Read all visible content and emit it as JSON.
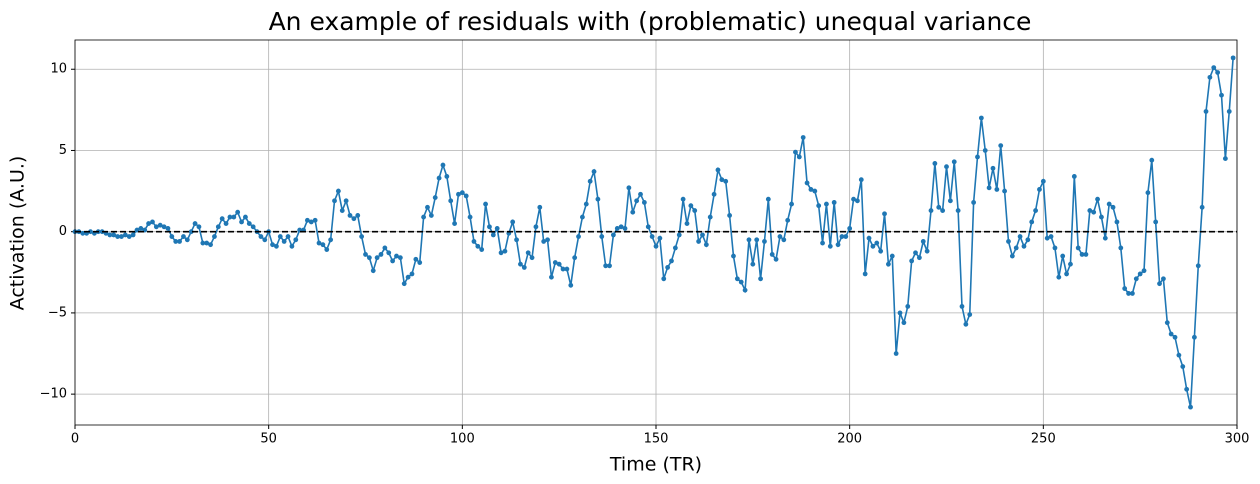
{
  "chart_data": {
    "type": "line",
    "title": "An example of residuals with (problematic) unequal variance",
    "x_label": "Time (TR)",
    "y_label": "Activation (A.U.)",
    "x": [
      0,
      1,
      2,
      3,
      4,
      5,
      6,
      7,
      8,
      9,
      10,
      11,
      12,
      13,
      14,
      15,
      16,
      17,
      18,
      19,
      20,
      21,
      22,
      23,
      24,
      25,
      26,
      27,
      28,
      29,
      30,
      31,
      32,
      33,
      34,
      35,
      36,
      37,
      38,
      39,
      40,
      41,
      42,
      43,
      44,
      45,
      46,
      47,
      48,
      49,
      50,
      51,
      52,
      53,
      54,
      55,
      56,
      57,
      58,
      59,
      60,
      61,
      62,
      63,
      64,
      65,
      66,
      67,
      68,
      69,
      70,
      71,
      72,
      73,
      74,
      75,
      76,
      77,
      78,
      79,
      80,
      81,
      82,
      83,
      84,
      85,
      86,
      87,
      88,
      89,
      90,
      91,
      92,
      93,
      94,
      95,
      96,
      97,
      98,
      99,
      100,
      101,
      102,
      103,
      104,
      105,
      106,
      107,
      108,
      109,
      110,
      111,
      112,
      113,
      114,
      115,
      116,
      117,
      118,
      119,
      120,
      121,
      122,
      123,
      124,
      125,
      126,
      127,
      128,
      129,
      130,
      131,
      132,
      133,
      134,
      135,
      136,
      137,
      138,
      139,
      140,
      141,
      142,
      143,
      144,
      145,
      146,
      147,
      148,
      149,
      150,
      151,
      152,
      153,
      154,
      155,
      156,
      157,
      158,
      159,
      160,
      161,
      162,
      163,
      164,
      165,
      166,
      167,
      168,
      169,
      170,
      171,
      172,
      173,
      174,
      175,
      176,
      177,
      178,
      179,
      180,
      181,
      182,
      183,
      184,
      185,
      186,
      187,
      188,
      189,
      190,
      191,
      192,
      193,
      194,
      195,
      196,
      197,
      198,
      199,
      200,
      201,
      202,
      203,
      204,
      205,
      206,
      207,
      208,
      209,
      210,
      211,
      212,
      213,
      214,
      215,
      216,
      217,
      218,
      219,
      220,
      221,
      222,
      223,
      224,
      225,
      226,
      227,
      228,
      229,
      230,
      231,
      232,
      233,
      234,
      235,
      236,
      237,
      238,
      239,
      240,
      241,
      242,
      243,
      244,
      245,
      246,
      247,
      248,
      249,
      250,
      251,
      252,
      253,
      254,
      255,
      256,
      257,
      258,
      259,
      260,
      261,
      262,
      263,
      264,
      265,
      266,
      267,
      268,
      269,
      270,
      271,
      272,
      273,
      274,
      275,
      276,
      277,
      278,
      279,
      280,
      281,
      282,
      283,
      284,
      285,
      286,
      287,
      288,
      289,
      290,
      291,
      292,
      293,
      294,
      295,
      296,
      297,
      298,
      299
    ],
    "values": [
      0,
      0,
      -0.1,
      -0.1,
      0,
      -0.1,
      0,
      0,
      -0.1,
      -0.2,
      -0.2,
      -0.3,
      -0.3,
      -0.2,
      -0.3,
      -0.2,
      0.1,
      0.2,
      0.1,
      0.5,
      0.6,
      0.3,
      0.4,
      0.3,
      0.2,
      -0.3,
      -0.6,
      -0.6,
      -0.3,
      -0.5,
      0,
      0.5,
      0.3,
      -0.7,
      -0.7,
      -0.8,
      -0.3,
      0.3,
      0.8,
      0.5,
      0.9,
      0.9,
      1.2,
      0.6,
      0.9,
      0.5,
      0.3,
      0,
      -0.3,
      -0.5,
      0,
      -0.8,
      -0.9,
      -0.3,
      -0.6,
      -0.3,
      -0.9,
      -0.5,
      0.1,
      0.1,
      0.7,
      0.6,
      0.7,
      -0.7,
      -0.8,
      -1.1,
      -0.5,
      1.9,
      2.5,
      1.3,
      1.9,
      1.0,
      0.8,
      1.0,
      -0.3,
      -1.4,
      -1.6,
      -2.4,
      -1.6,
      -1.4,
      -1.0,
      -1.3,
      -1.8,
      -1.5,
      -1.6,
      -3.2,
      -2.8,
      -2.6,
      -1.7,
      -1.9,
      0.9,
      1.5,
      1.0,
      2.1,
      3.3,
      4.1,
      3.4,
      1.9,
      0.5,
      2.3,
      2.4,
      2.2,
      0.9,
      -0.6,
      -0.9,
      -1.1,
      1.7,
      0.3,
      -0.2,
      0.2,
      -1.3,
      -1.2,
      -0.1,
      0.6,
      -0.5,
      -2.0,
      -2.2,
      -1.3,
      -1.6,
      0.3,
      1.5,
      -0.6,
      -0.5,
      -2.8,
      -1.9,
      -2.0,
      -2.3,
      -2.3,
      -3.3,
      -1.6,
      -0.3,
      0.9,
      1.7,
      3.1,
      3.7,
      2.0,
      -0.3,
      -2.1,
      -2.1,
      -0.2,
      0.2,
      0.3,
      0.2,
      2.7,
      1.2,
      1.9,
      2.3,
      1.8,
      0.3,
      -0.3,
      -0.9,
      -0.4,
      -2.9,
      -2.2,
      -1.8,
      -1.0,
      -0.2,
      2.0,
      0.5,
      1.6,
      1.3,
      -0.6,
      -0.2,
      -0.8,
      0.9,
      2.3,
      3.8,
      3.2,
      3.1,
      1.0,
      -1.5,
      -2.9,
      -3.1,
      -3.6,
      -0.5,
      -2.0,
      -0.5,
      -2.9,
      -0.6,
      2.0,
      -1.4,
      -1.7,
      -0.3,
      -0.5,
      0.7,
      1.7,
      4.9,
      4.6,
      5.8,
      3.0,
      2.6,
      2.5,
      1.6,
      -0.7,
      1.7,
      -0.9,
      1.8,
      -0.8,
      -0.3,
      -0.3,
      0.2,
      2.0,
      1.9,
      3.2,
      -2.6,
      -0.4,
      -0.9,
      -0.7,
      -1.2,
      1.1,
      -2.0,
      -1.5,
      -7.5,
      -5.0,
      -5.6,
      -4.6,
      -1.8,
      -1.3,
      -1.6,
      -0.6,
      -1.2,
      1.3,
      4.2,
      1.5,
      1.3,
      4.0,
      1.9,
      4.3,
      1.3,
      -4.6,
      -5.7,
      -5.1,
      1.8,
      4.6,
      7.0,
      5.0,
      2.7,
      3.9,
      2.6,
      5.3,
      2.5,
      -0.6,
      -1.5,
      -1.0,
      -0.3,
      -0.9,
      -0.5,
      0.6,
      1.3,
      2.6,
      3.1,
      -0.4,
      -0.3,
      -1.0,
      -2.8,
      -1.5,
      -2.6,
      -2.0,
      3.4,
      -1.0,
      -1.4,
      -1.4,
      1.3,
      1.2,
      2.0,
      0.9,
      -0.4,
      1.7,
      1.5,
      0.6,
      -1.0,
      -3.5,
      -3.8,
      -3.8,
      -2.9,
      -2.6,
      -2.4,
      2.4,
      4.4,
      0.6,
      -3.2,
      -2.9,
      -5.6,
      -6.3,
      -6.5,
      -7.6,
      -8.3,
      -9.7,
      -10.8,
      -6.5,
      -2.1,
      1.5,
      7.4,
      9.5,
      10.1,
      9.8,
      8.4,
      4.5,
      7.4,
      10.7
    ],
    "color": "#1f77b4",
    "reference_line": 0,
    "reference_color": "#000000",
    "xlim": [
      0,
      300
    ],
    "xticks": [
      0,
      50,
      100,
      150,
      200,
      250,
      300
    ],
    "ylim": [
      -11.9,
      11.8
    ],
    "yticks": [
      {
        "value": -10,
        "label": "−10"
      },
      {
        "value": -5,
        "label": "−5"
      },
      0,
      5,
      10
    ],
    "grid": true
  }
}
